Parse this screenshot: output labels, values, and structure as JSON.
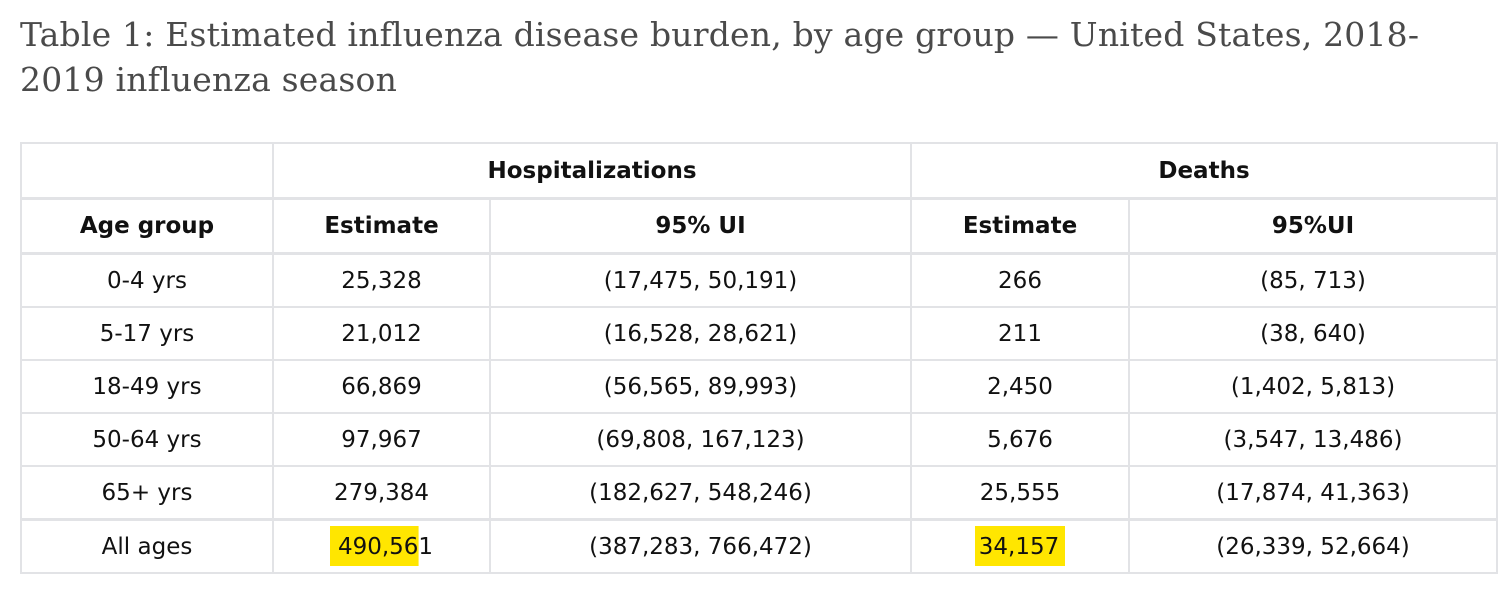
{
  "title": "Table 1: Estimated influenza disease burden, by age group — United States, 2018-2019 influenza season",
  "table": {
    "group_headers": [
      "Hospitalizations",
      "Deaths"
    ],
    "columns": [
      "Age group",
      "Estimate",
      "95% UI",
      "Estimate",
      "95%UI"
    ],
    "rows": [
      [
        "0-4 yrs",
        "25,328",
        "(17,475, 50,191)",
        "266",
        "(85, 713)"
      ],
      [
        "5-17 yrs",
        "21,012",
        "(16,528, 28,621)",
        "211",
        "(38, 640)"
      ],
      [
        "18-49 yrs",
        "66,869",
        "(56,565, 89,993)",
        "2,450",
        "(1,402, 5,813)"
      ],
      [
        "50-64 yrs",
        "97,967",
        "(69,808, 167,123)",
        "5,676",
        "(3,547, 13,486)"
      ],
      [
        "65+ yrs",
        "279,384",
        "(182,627, 548,246)",
        "25,555",
        "(17,874, 41,363)"
      ],
      [
        "All ages",
        "490,561",
        "(387,283, 766,472)",
        "34,157",
        "(26,339, 52,664)"
      ]
    ],
    "highlight_color": "#ffe600"
  }
}
